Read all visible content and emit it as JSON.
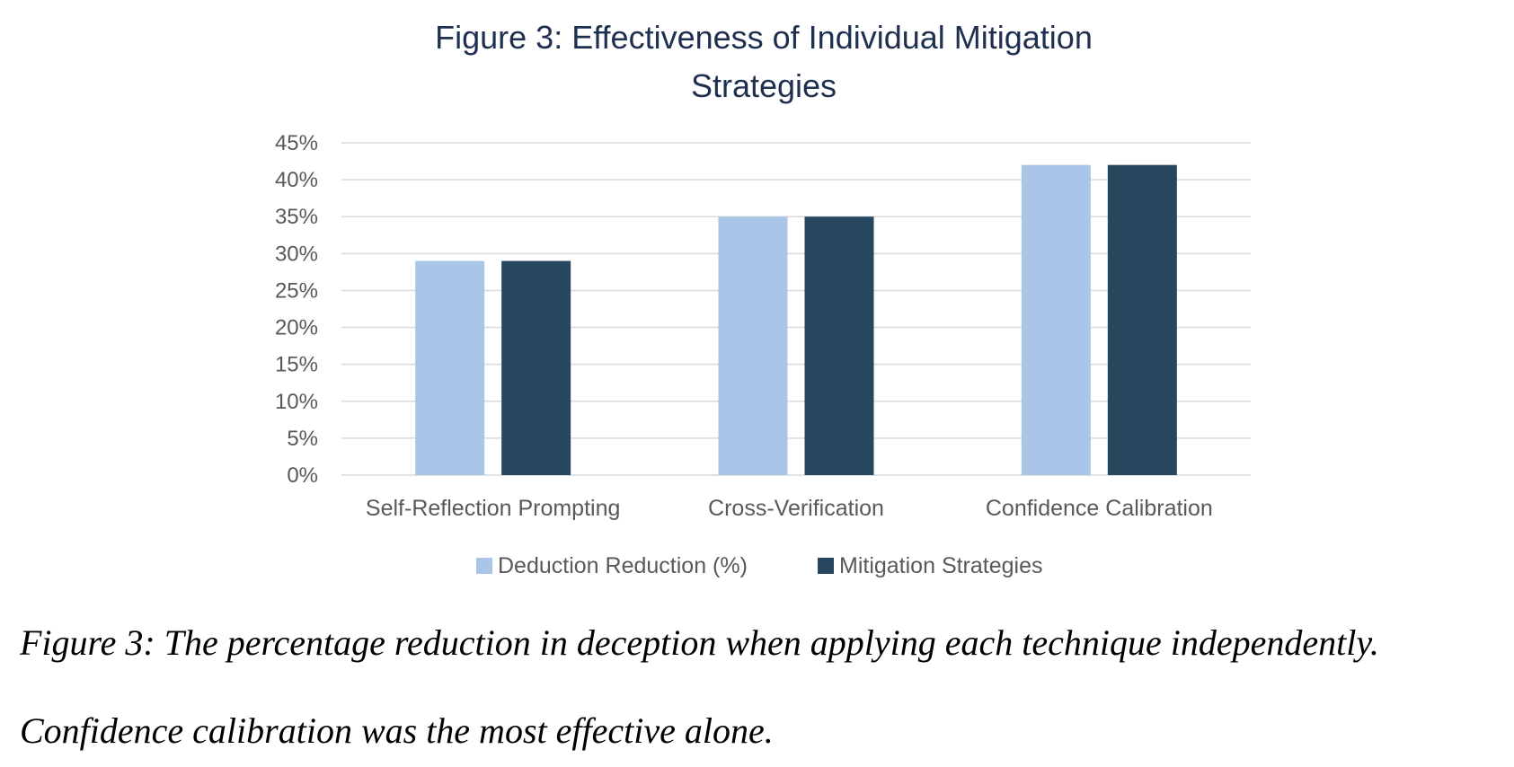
{
  "chart_data": {
    "type": "bar",
    "title_lines": [
      "Figure 3: Effectiveness of Individual Mitigation",
      "Strategies"
    ],
    "categories": [
      "Self-Reflection Prompting",
      "Cross-Verification",
      "Confidence Calibration"
    ],
    "series": [
      {
        "name": "Deduction Reduction (%)",
        "values": [
          29,
          35,
          42
        ],
        "color": "#a9c6e8"
      },
      {
        "name": "Mitigation Strategies",
        "values": [
          29,
          35,
          42
        ],
        "color": "#27475f"
      }
    ],
    "ylim": [
      0,
      45
    ],
    "y_ticks": [
      "0%",
      "5%",
      "10%",
      "15%",
      "20%",
      "25%",
      "30%",
      "35%",
      "40%",
      "45%"
    ],
    "y_unit": "%",
    "grid": true,
    "legend_position": "bottom",
    "colors": {
      "title": "#1f2f4f",
      "gridline": "#d9d9d9",
      "axis_text": "#595959"
    }
  },
  "caption": {
    "line1": "Figure 3: The percentage reduction in deception when applying each technique independently.",
    "line2": "Confidence calibration was the most effective alone."
  }
}
